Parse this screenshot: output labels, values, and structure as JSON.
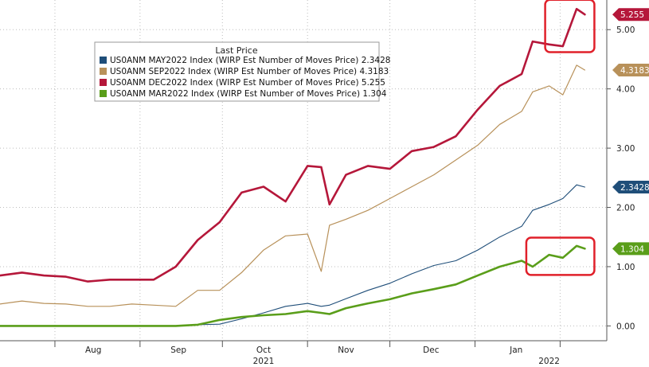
{
  "chart_data": {
    "type": "line",
    "title": "",
    "legend": {
      "title": "Last Price",
      "placement": "top-left"
    },
    "xlabel": "",
    "ylabel": "",
    "x_range": [
      "2021-07-12",
      "2022-02-18"
    ],
    "ylim": [
      -0.25,
      5.5
    ],
    "y_ticks": [
      0,
      1,
      2,
      3,
      4,
      5
    ],
    "y_tick_labels": [
      "0.00",
      "1.00",
      "2.00",
      "3.00",
      "4.00",
      "5.00"
    ],
    "grid": true,
    "y_axis_side": "right",
    "x_tick_labels": [
      {
        "label": "Aug",
        "date": "2021-08-15"
      },
      {
        "label": "Sep",
        "date": "2021-09-15"
      },
      {
        "label": "Oct",
        "date": "2021-10-16"
      },
      {
        "label": "Nov",
        "date": "2021-11-15"
      },
      {
        "label": "Dec",
        "date": "2021-12-16"
      },
      {
        "label": "Jan",
        "date": "2022-01-16"
      }
    ],
    "x_separators": [
      "2021-08-01",
      "2021-09-01",
      "2021-10-01",
      "2021-11-01",
      "2021-12-01",
      "2022-01-01",
      "2022-02-01"
    ],
    "year_labels": [
      {
        "label": "2021",
        "date": "2021-10-16"
      },
      {
        "label": "2022",
        "date": "2022-01-28"
      }
    ],
    "x": [
      "2021-07-12",
      "2021-07-20",
      "2021-07-28",
      "2021-08-05",
      "2021-08-13",
      "2021-08-21",
      "2021-08-29",
      "2021-09-06",
      "2021-09-14",
      "2021-09-22",
      "2021-09-30",
      "2021-10-08",
      "2021-10-16",
      "2021-10-24",
      "2021-11-01",
      "2021-11-06",
      "2021-11-09",
      "2021-11-15",
      "2021-11-23",
      "2021-12-01",
      "2021-12-09",
      "2021-12-17",
      "2021-12-25",
      "2022-01-02",
      "2022-01-10",
      "2022-01-18",
      "2022-01-22",
      "2022-01-28",
      "2022-02-02",
      "2022-02-07",
      "2022-02-10"
    ],
    "series": [
      {
        "name": "US0ANM MAY2022 Index (WIRP Est Number of Moves Price)",
        "last": "2.3428",
        "color": "#1f4e79",
        "values": [
          0,
          0,
          0,
          0,
          0,
          0,
          0,
          0,
          0,
          0.02,
          0.03,
          0.12,
          0.22,
          0.33,
          0.38,
          0.33,
          0.35,
          0.46,
          0.6,
          0.72,
          0.88,
          1.02,
          1.1,
          1.28,
          1.5,
          1.68,
          1.95,
          2.05,
          2.15,
          2.38,
          2.3428
        ]
      },
      {
        "name": "US0ANM SEP2022 Index (WIRP Est Number of Moves Price)",
        "last": "4.3183",
        "color": "#b8915a",
        "values": [
          0.37,
          0.42,
          0.38,
          0.37,
          0.33,
          0.33,
          0.37,
          0.35,
          0.33,
          0.6,
          0.6,
          0.9,
          1.28,
          1.52,
          1.55,
          0.92,
          1.7,
          1.8,
          1.95,
          2.15,
          2.35,
          2.55,
          2.8,
          3.05,
          3.4,
          3.62,
          3.95,
          4.05,
          3.9,
          4.4,
          4.3183
        ]
      },
      {
        "name": "US0ANM DEC2022 Index (WIRP Est Number of Moves Price)",
        "last": "5.255",
        "color": "#b5173a",
        "values": [
          0.85,
          0.9,
          0.85,
          0.83,
          0.75,
          0.78,
          0.78,
          0.78,
          1.0,
          1.45,
          1.75,
          2.25,
          2.35,
          2.1,
          2.7,
          2.68,
          2.05,
          2.55,
          2.7,
          2.65,
          2.95,
          3.02,
          3.2,
          3.65,
          4.05,
          4.25,
          4.8,
          4.75,
          4.72,
          5.35,
          5.255
        ]
      },
      {
        "name": "US0ANM MAR2022 Index (WIRP Est Number of Moves Price)",
        "last": "1.304",
        "color": "#5a9e1a",
        "values": [
          0,
          0,
          0,
          0,
          0,
          0,
          0,
          0,
          0,
          0.02,
          0.1,
          0.15,
          0.18,
          0.2,
          0.25,
          0.22,
          0.2,
          0.3,
          0.38,
          0.45,
          0.55,
          0.62,
          0.7,
          0.85,
          1.0,
          1.1,
          1.0,
          1.2,
          1.15,
          1.35,
          1.304
        ]
      }
    ]
  }
}
